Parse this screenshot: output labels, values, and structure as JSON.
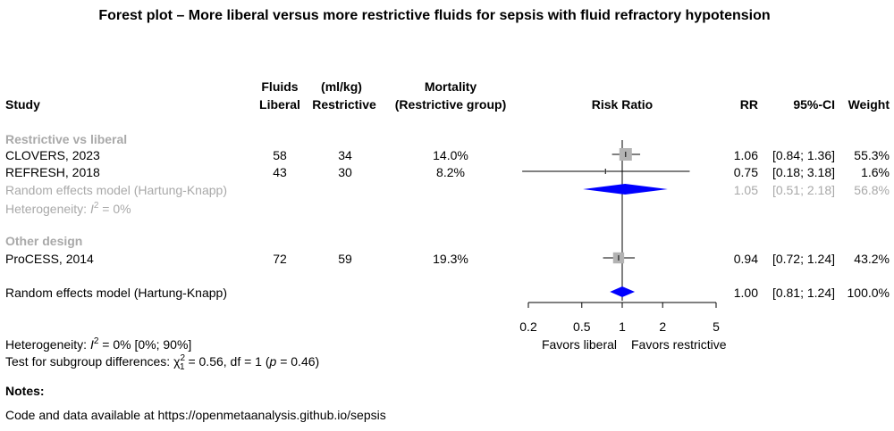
{
  "chart_data": {
    "type": "forest",
    "title": "Forest plot – More liberal versus more restrictive fluids for sepsis with fluid refractory hypotension",
    "headers": {
      "study": "Study",
      "fluids_top": "Fluids",
      "fluids_unit": "(ml/kg)",
      "liberal": "Liberal",
      "restrictive": "Restrictive",
      "mortality_top": "Mortality",
      "mortality_sub": "(Restrictive group)",
      "plot": "Risk Ratio",
      "rr": "RR",
      "ci": "95%-CI",
      "weight": "Weight"
    },
    "x_scale": "log",
    "xlim": [
      0.2,
      5
    ],
    "reference_line": 1,
    "x_ticks": [
      "0.2",
      "0.5",
      "1",
      "2",
      "5"
    ],
    "favors_left": "Favors liberal",
    "favors_right": "Favors restrictive",
    "subgroups": [
      {
        "label": "Restrictive vs liberal",
        "studies": [
          {
            "name": "CLOVERS, 2023",
            "liberal": "58",
            "restrictive": "34",
            "mortality": "14.0%",
            "rr": 1.06,
            "lo": 0.84,
            "hi": 1.36,
            "rr_text": "1.06",
            "ci_text": "[0.84; 1.36]",
            "weight": "55.3%",
            "w": 55.3
          },
          {
            "name": "REFRESH, 2018",
            "liberal": "43",
            "restrictive": "30",
            "mortality": "8.2%",
            "rr": 0.75,
            "lo": 0.18,
            "hi": 3.18,
            "rr_text": "0.75",
            "ci_text": "[0.18; 3.18]",
            "weight": "1.6%",
            "w": 1.6
          }
        ],
        "model": {
          "label": "Random effects model (Hartung-Knapp)",
          "rr": 1.05,
          "lo": 0.51,
          "hi": 2.18,
          "rr_text": "1.05",
          "ci_text": "[0.51; 2.18]",
          "weight": "56.8%"
        },
        "heterogeneity": {
          "prefix": "Heterogeneity: ",
          "i_sym": "I",
          "sup": "2",
          "rest": " = 0%"
        }
      },
      {
        "label": "Other design",
        "studies": [
          {
            "name": "ProCESS, 2014",
            "liberal": "72",
            "restrictive": "59",
            "mortality": "19.3%",
            "rr": 0.94,
            "lo": 0.72,
            "hi": 1.24,
            "rr_text": "0.94",
            "ci_text": "[0.72; 1.24]",
            "weight": "43.2%",
            "w": 43.2
          }
        ]
      }
    ],
    "overall": {
      "label": "Random effects model (Hartung-Knapp)",
      "rr": 1.0,
      "lo": 0.81,
      "hi": 1.24,
      "rr_text": "1.00",
      "ci_text": "[0.81; 1.24]",
      "weight": "100.0%"
    },
    "overall_heterogeneity": {
      "prefix": "Heterogeneity: ",
      "i_sym": "I",
      "sup": "2",
      "rest": " = 0% [0%; 90%]"
    },
    "subgroup_test": {
      "prefix": "Test for subgroup differences: ",
      "chi": "χ",
      "sup": "2",
      "sub": "1",
      "rest1": " = 0.56, df = 1 (",
      "p": "p",
      "rest2": " = 0.46)"
    }
  },
  "notes": {
    "heading": "Notes:",
    "text": "Code and data available at https://openmetaanalysis.github.io/sepsis"
  }
}
